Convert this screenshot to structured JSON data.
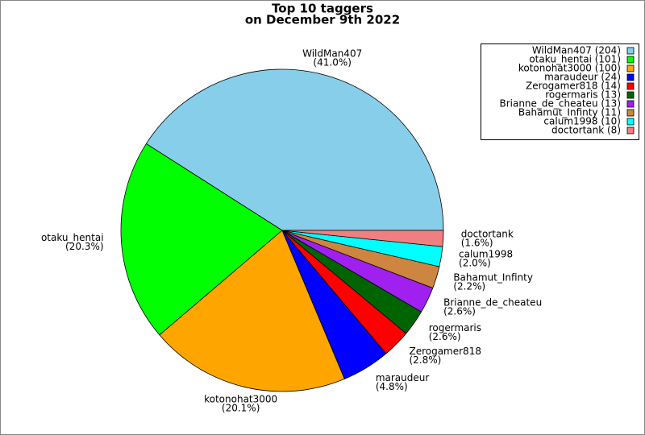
{
  "chart_data": {
    "type": "pie",
    "title": "Top 10 taggers",
    "subtitle": "on December 9th 2022",
    "categories": [
      "WildMan407",
      "otaku_hentai",
      "kotonohat3000",
      "maraudeur",
      "Zerogamer818",
      "rogermaris",
      "Brianne_de_cheateu",
      "Bahamut_Infinty",
      "calum1998",
      "doctortank"
    ],
    "values": [
      204,
      101,
      100,
      24,
      14,
      13,
      13,
      11,
      10,
      8
    ],
    "value_labels": [
      "(41.0%)",
      "(20.3%)",
      "(20.1%)",
      "(4.8%)",
      "(2.8%)",
      "(2.6%)",
      "(2.6%)",
      "(2.2%)",
      "(2.0%)",
      "(1.6%)"
    ],
    "legend_labels": [
      "WildMan407 (204)",
      "otaku_hentai (101)",
      "kotonohat3000 (100)",
      "maraudeur (24)",
      "Zerogamer818 (14)",
      "rogermaris (13)",
      "Brianne_de_cheateu (13)",
      "Bahamut_Infinty (11)",
      "calum1998 (10)",
      "doctortank (8)"
    ],
    "colors": [
      "#87ceeb",
      "#00ff00",
      "#ffa500",
      "#0000ff",
      "#ff0000",
      "#006400",
      "#a020f0",
      "#cd853f",
      "#00ffff",
      "#f08080"
    ],
    "legend_position": "top-right"
  }
}
